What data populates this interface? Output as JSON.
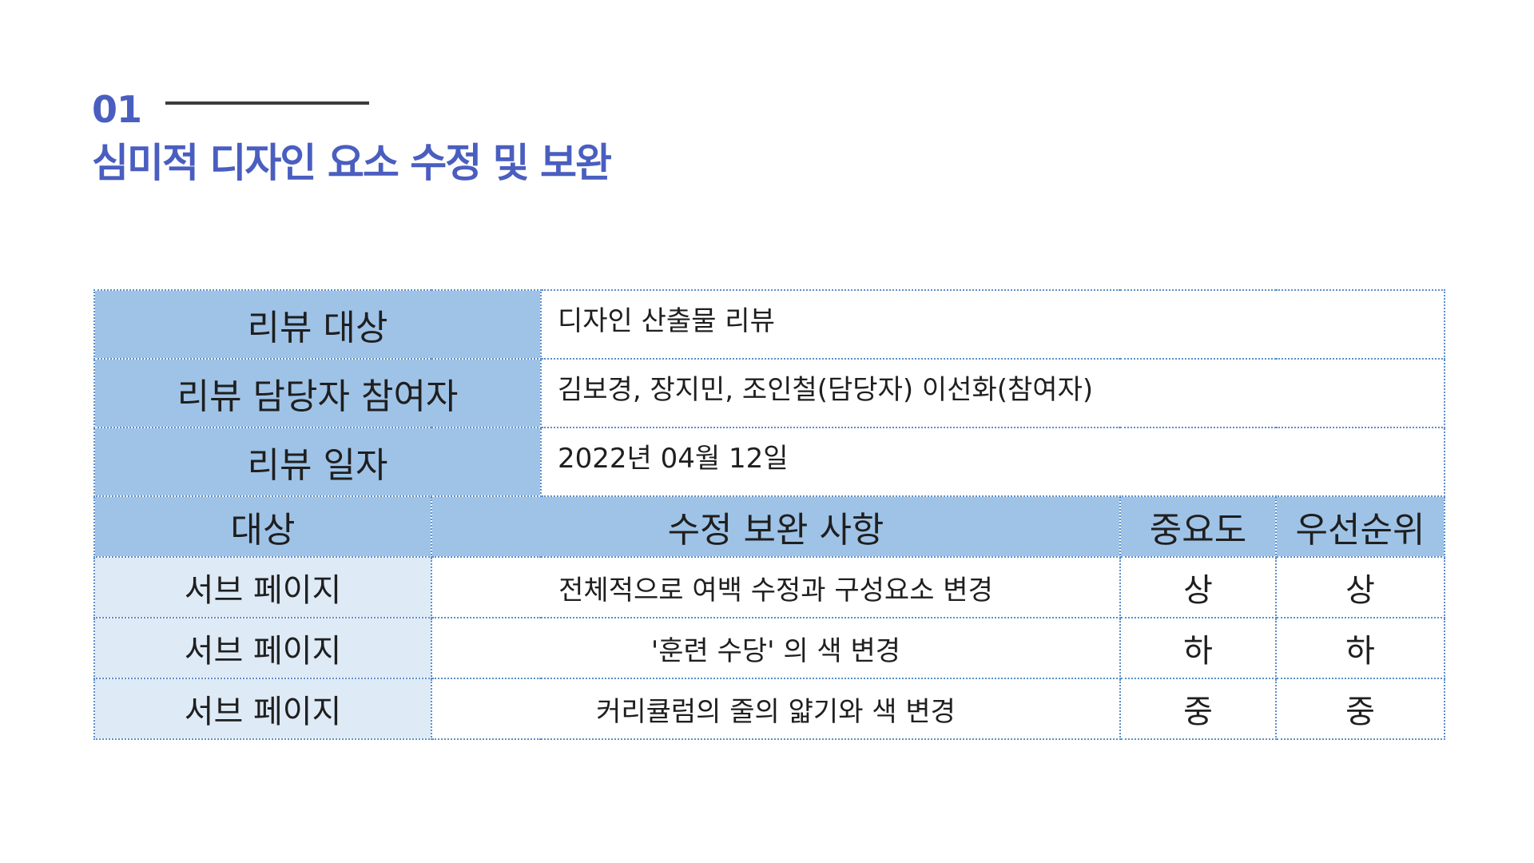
{
  "header": {
    "section_number": "01",
    "title": "심미적 디자인 요소 수정 및 보완"
  },
  "info": {
    "target_label": "리뷰 대상",
    "target_value": "디자인 산출물 리뷰",
    "people_label": "리뷰 담당자 참여자",
    "people_value": "김보경, 장지민, 조인철(담당자) 이선화(참여자)",
    "date_label": "리뷰 일자",
    "date_value": "2022년 04월 12일"
  },
  "columns": {
    "target": "대상",
    "change": "수정 보완 사항",
    "importance": "중요도",
    "priority": "우선순위"
  },
  "rows": [
    {
      "target": "서브 페이지",
      "change": "전체적으로 여백 수정과 구성요소 변경",
      "importance": "상",
      "priority": "상"
    },
    {
      "target": "서브 페이지",
      "change": "'훈련 수당' 의 색 변경",
      "importance": "하",
      "priority": "하"
    },
    {
      "target": "서브 페이지",
      "change": "커리큘럼의 줄의 얇기와 색 변경",
      "importance": "중",
      "priority": "중"
    }
  ],
  "colors": {
    "accent": "#4a5ec0",
    "header_fill": "#9fc3e7",
    "row_label_fill": "#deeaf6",
    "border": "#5b8fc9"
  }
}
